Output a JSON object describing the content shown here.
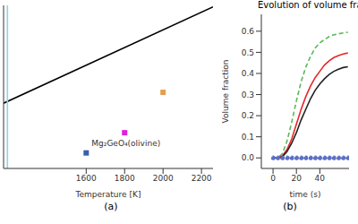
{
  "chart_data": [
    {
      "type": "scatter",
      "panel_label": "(a)",
      "xlabel": "Temperature [K]",
      "xlim": [
        1170,
        2260
      ],
      "xticks": [
        1600,
        1800,
        2000,
        2200
      ],
      "ylim": [
        0,
        10.5
      ],
      "tick_labels": "x",
      "series": [
        {
          "type": "line",
          "color": "#000000",
          "x": [
            1170,
            2260
          ],
          "values": [
            4.2,
            10.4
          ]
        },
        {
          "type": "line",
          "color": "#8fd3e6",
          "x": [
            1190,
            1190
          ],
          "values": [
            0,
            10.5
          ]
        },
        {
          "type": "scatter",
          "marker": "square",
          "color": "#3a5fb0",
          "x": [
            1600
          ],
          "values": [
            1.0
          ]
        },
        {
          "type": "scatter",
          "marker": "square",
          "color": "#e020d8",
          "x": [
            1800
          ],
          "values": [
            2.3
          ]
        },
        {
          "type": "scatter",
          "marker": "square",
          "color": "#e0a050",
          "x": [
            2000
          ],
          "values": [
            4.9
          ]
        }
      ],
      "annotations": [
        {
          "text": "Mg₂GeO₄(olivine)",
          "x": 1600,
          "y": 1.6
        }
      ]
    },
    {
      "type": "line",
      "title": "Evolution of volume fraction",
      "panel_label": "(b)",
      "xlabel": "time (s)",
      "ylabel": "Volume fraction",
      "xlim": [
        -10,
        65
      ],
      "xticks": [
        0,
        20,
        40
      ],
      "ylim": [
        -0.05,
        0.68
      ],
      "yticks": [
        {
          "value": 0,
          "label": "0.0"
        },
        {
          "value": 0.1,
          "label": "0.1"
        },
        {
          "value": 0.2,
          "label": "0.2"
        },
        {
          "value": 0.3,
          "label": "0.3"
        },
        {
          "value": 0.4,
          "label": "0.4"
        },
        {
          "value": 0.5,
          "label": "0.5"
        },
        {
          "value": 0.6,
          "label": "0.6"
        }
      ],
      "series": [
        {
          "color": "#5cb85c",
          "line_style": "dashed",
          "x": [
            0,
            4,
            8,
            12,
            16,
            20,
            24,
            28,
            32,
            36,
            40,
            44,
            48,
            52,
            56,
            60,
            64
          ],
          "values": [
            0,
            0,
            0.02,
            0.08,
            0.17,
            0.27,
            0.36,
            0.43,
            0.48,
            0.52,
            0.545,
            0.56,
            0.575,
            0.583,
            0.588,
            0.592,
            0.595
          ]
        },
        {
          "color": "#e8262a",
          "x": [
            0,
            4,
            8,
            12,
            16,
            20,
            24,
            28,
            32,
            36,
            40,
            44,
            48,
            52,
            56,
            60,
            64
          ],
          "values": [
            0,
            0,
            0.01,
            0.04,
            0.09,
            0.16,
            0.23,
            0.29,
            0.34,
            0.38,
            0.41,
            0.44,
            0.46,
            0.475,
            0.485,
            0.492,
            0.497
          ]
        },
        {
          "color": "#222222",
          "x": [
            0,
            4,
            8,
            12,
            16,
            20,
            24,
            28,
            32,
            36,
            40,
            44,
            48,
            52,
            56,
            60,
            64
          ],
          "values": [
            0,
            0,
            0.005,
            0.03,
            0.07,
            0.12,
            0.18,
            0.23,
            0.28,
            0.32,
            0.35,
            0.375,
            0.395,
            0.41,
            0.42,
            0.428,
            0.432
          ]
        },
        {
          "color": "#5b6fc4",
          "line_style": "dashed",
          "marker": "circle",
          "x": [
            0,
            4,
            8,
            12,
            16,
            20,
            24,
            28,
            32,
            36,
            40,
            44,
            48,
            52,
            56,
            60,
            64
          ],
          "values": [
            0,
            0,
            0,
            0,
            0,
            0,
            0,
            0,
            0,
            0,
            0,
            0,
            0,
            0,
            0,
            0,
            0
          ]
        }
      ]
    }
  ]
}
